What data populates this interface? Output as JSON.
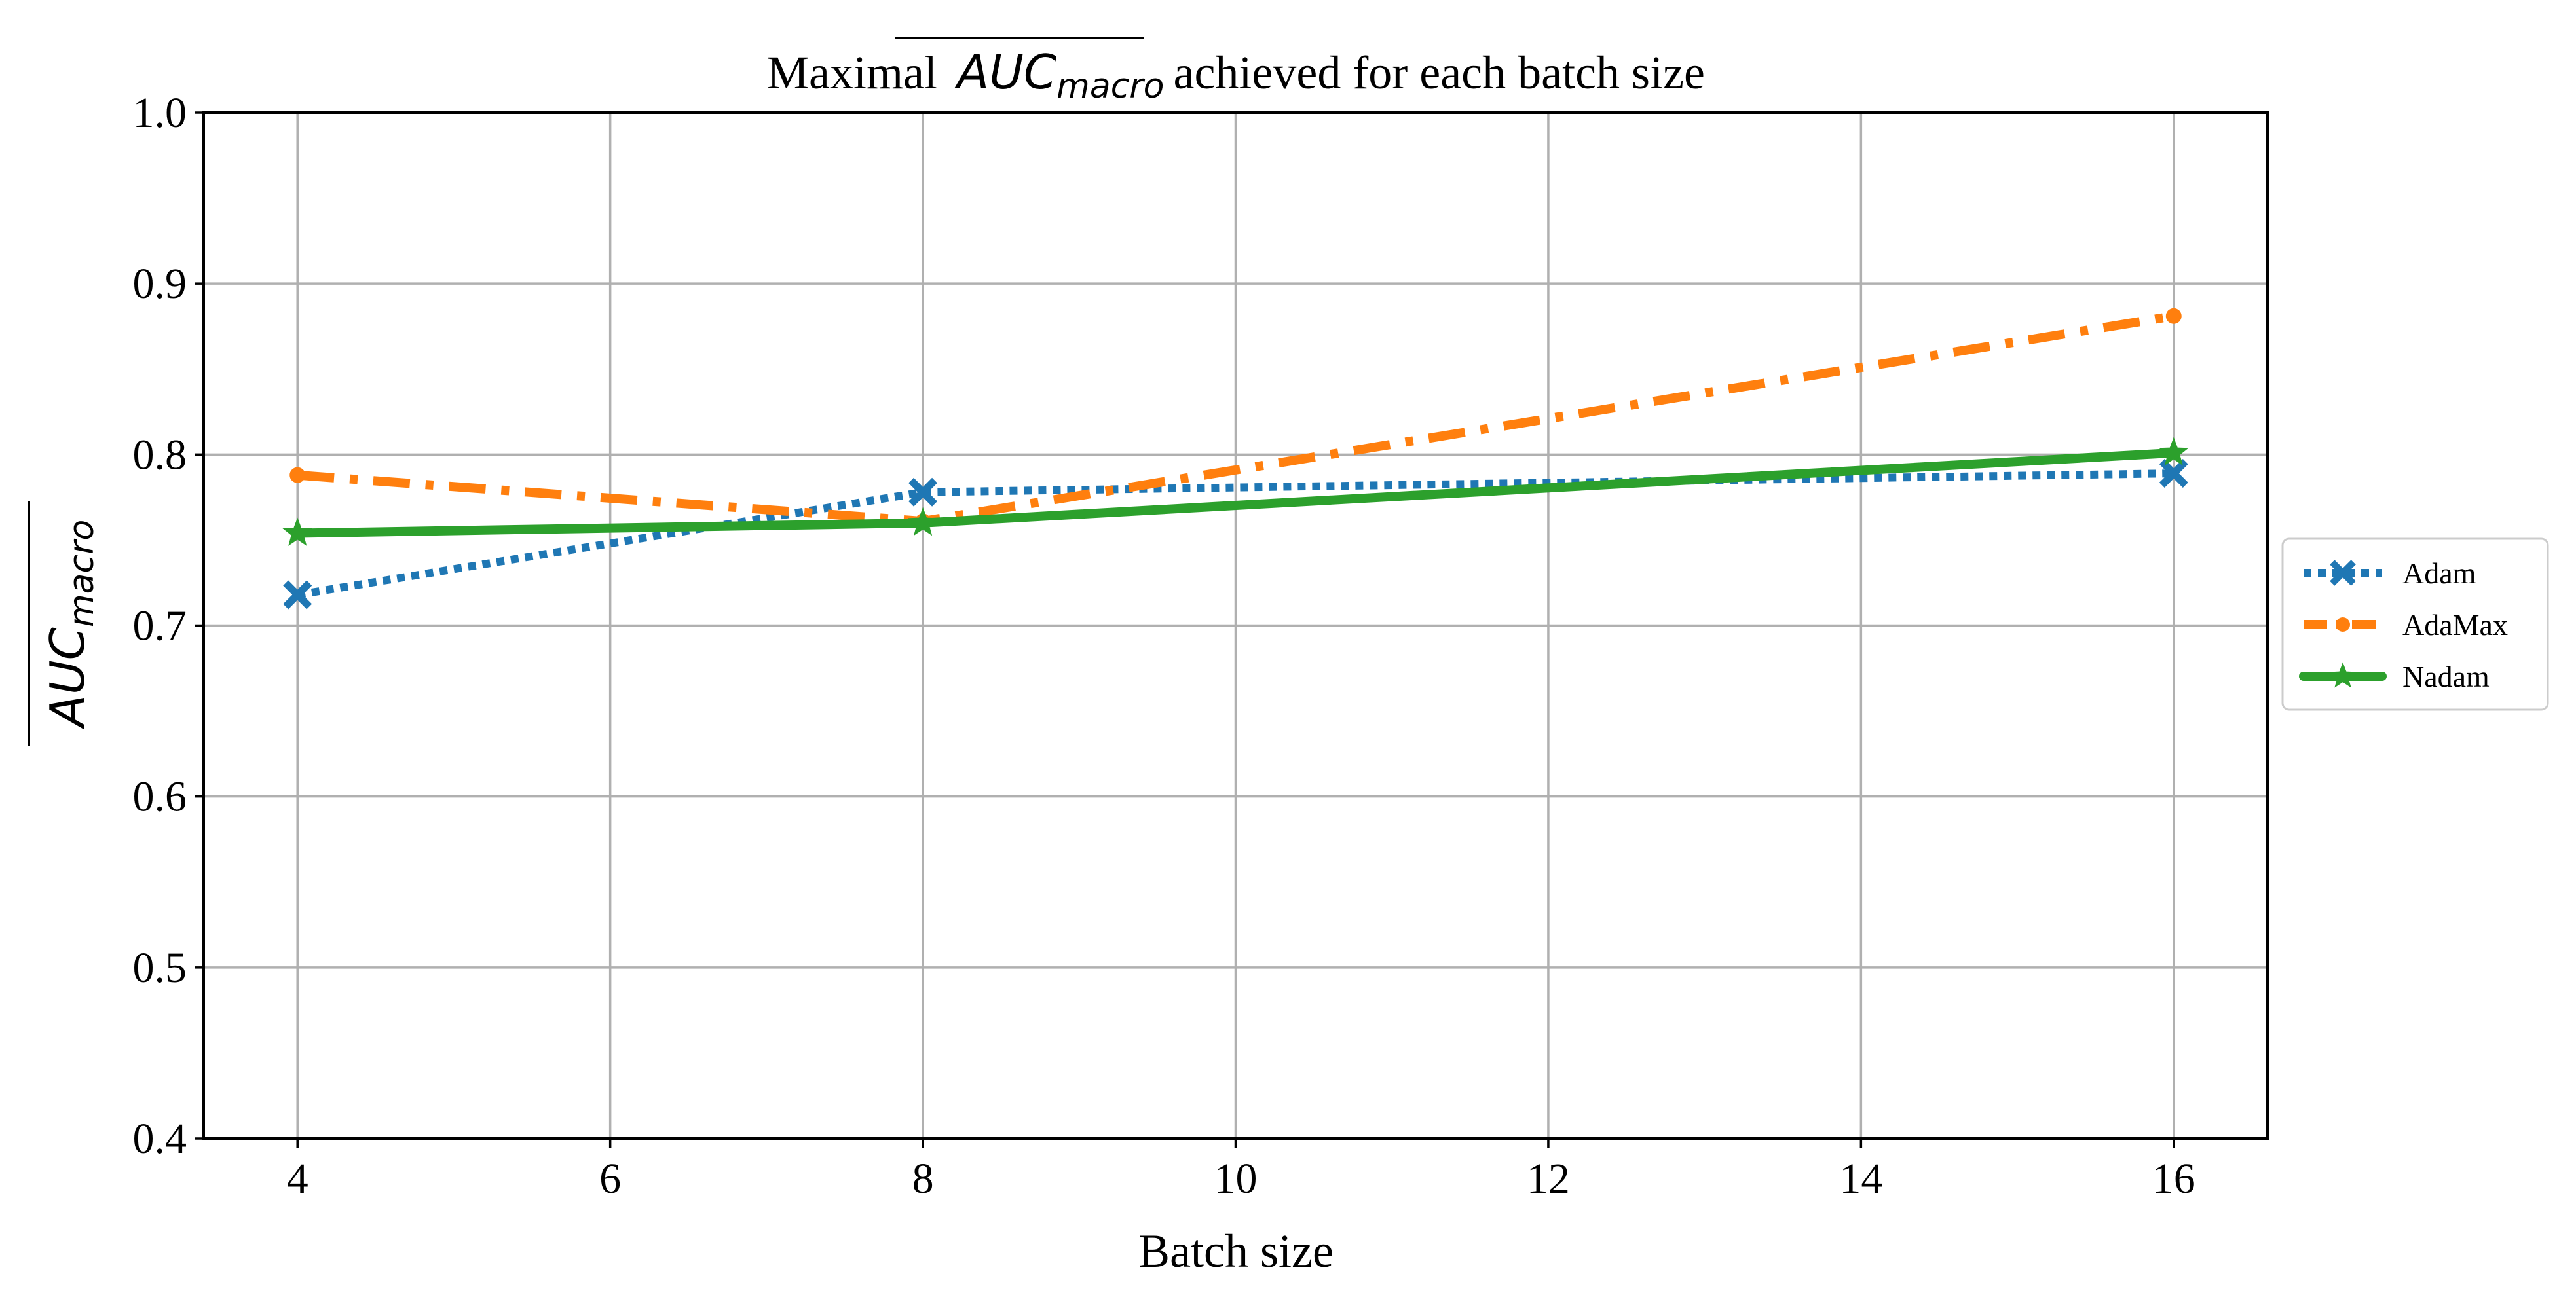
{
  "chart_data": {
    "type": "line",
    "title_prefix": "Maximal",
    "title_metric": "AUC",
    "title_metric_sub": "macro",
    "title_suffix": "achieved for each batch size",
    "xlabel": "Batch size",
    "ylabel_metric": "AUC",
    "ylabel_metric_sub": "macro",
    "xlim": [
      3.4,
      16.6
    ],
    "ylim": [
      0.4,
      1.0
    ],
    "xticks": [
      4,
      6,
      8,
      10,
      12,
      14,
      16
    ],
    "yticks": [
      0.4,
      0.5,
      0.6,
      0.7,
      0.8,
      0.9,
      1.0
    ],
    "xtick_labels": [
      "4",
      "6",
      "8",
      "10",
      "12",
      "14",
      "16"
    ],
    "ytick_labels": [
      "0.4",
      "0.5",
      "0.6",
      "0.7",
      "0.8",
      "0.9",
      "1.0"
    ],
    "grid": true,
    "legend_position": "center-right outside",
    "x": [
      4,
      8,
      16
    ],
    "series": [
      {
        "name": "Adam",
        "values": [
          0.718,
          0.778,
          0.789
        ],
        "color": "#1f77b4",
        "linestyle": "dotted",
        "marker": "x-filled"
      },
      {
        "name": "AdaMax",
        "values": [
          0.788,
          0.761,
          0.881
        ],
        "color": "#ff7f0e",
        "linestyle": "dashdot",
        "marker": "circle"
      },
      {
        "name": "Nadam",
        "values": [
          0.754,
          0.76,
          0.801
        ],
        "color": "#2ca02c",
        "linestyle": "solid",
        "marker": "star"
      }
    ]
  }
}
